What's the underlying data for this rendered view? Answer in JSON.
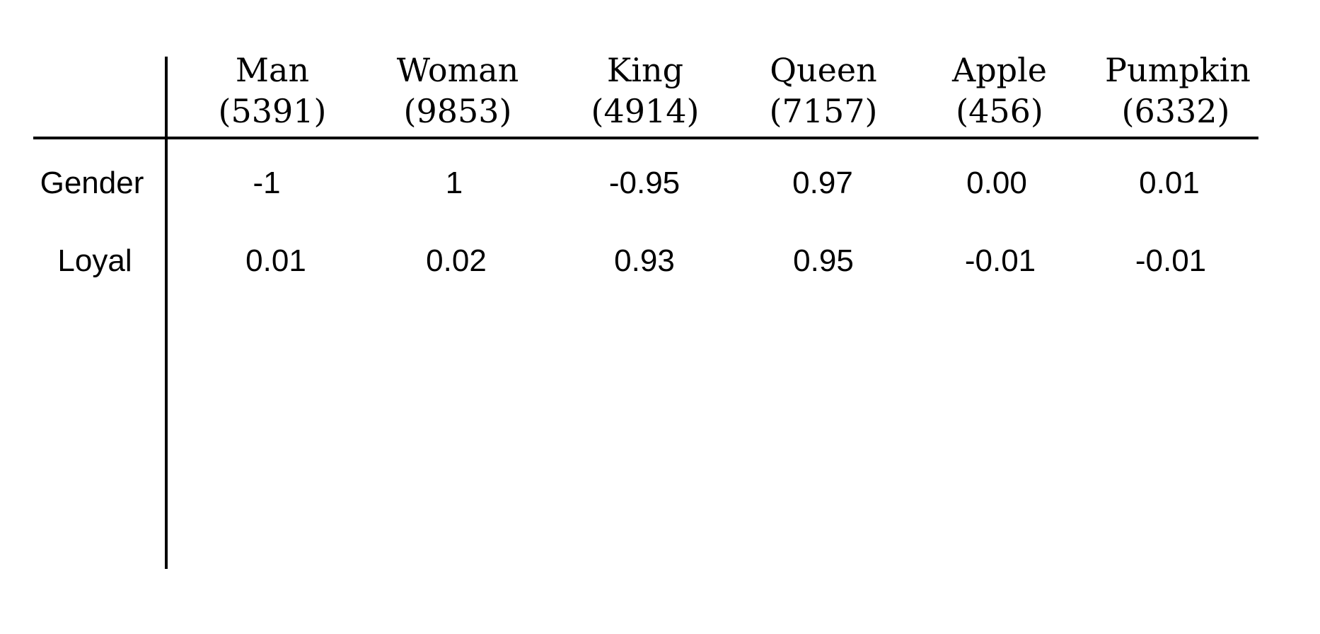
{
  "table": {
    "columns": [
      {
        "word": "Man",
        "id": "(5391)"
      },
      {
        "word": "Woman",
        "id": "(9853)"
      },
      {
        "word": "King",
        "id": "(4914)"
      },
      {
        "word": "Queen",
        "id": "(7157)"
      },
      {
        "word": "Apple",
        "id": "(456)"
      },
      {
        "word": "Pumpkin",
        "id": "(6332)"
      }
    ],
    "rows": [
      {
        "label": "Gender",
        "values": [
          "-1",
          "1",
          "-0.95",
          "0.97",
          "0.00",
          "0.01"
        ]
      },
      {
        "label": "Loyal",
        "values": [
          "0.01",
          "0.02",
          "0.93",
          "0.95",
          "-0.01",
          "-0.01"
        ]
      }
    ]
  }
}
